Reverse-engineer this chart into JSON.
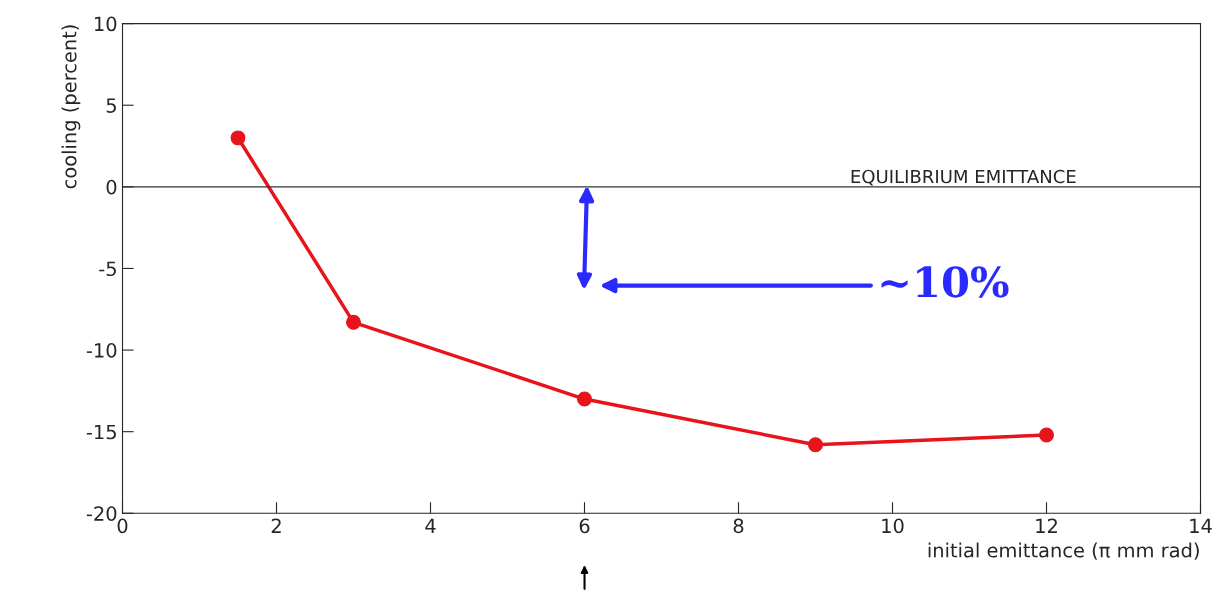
{
  "chart_data": {
    "type": "line",
    "xlabel": "initial emittance (π mm rad)",
    "ylabel": "cooling (percent)",
    "x": [
      1.5,
      3,
      6,
      9,
      12
    ],
    "series": [
      {
        "color": "#e8141c",
        "values": [
          3,
          -8.3,
          -13,
          -15.8,
          -15.2
        ]
      }
    ],
    "marker": "circle",
    "line_style": "solid",
    "xlim": [
      0,
      14
    ],
    "xticks": [
      0,
      2,
      4,
      6,
      8,
      10,
      12,
      14
    ],
    "ylim": [
      -20,
      10
    ],
    "yticks": [
      -20,
      -15,
      -10,
      -5,
      0,
      5,
      10
    ],
    "grid": false,
    "legend": false,
    "ref_lines": [
      {
        "axis": "y",
        "value": 0,
        "label": "EQUILIBRIUM EMITTANCE",
        "color": "#333333"
      }
    ],
    "annotations": [
      "~10%"
    ]
  }
}
